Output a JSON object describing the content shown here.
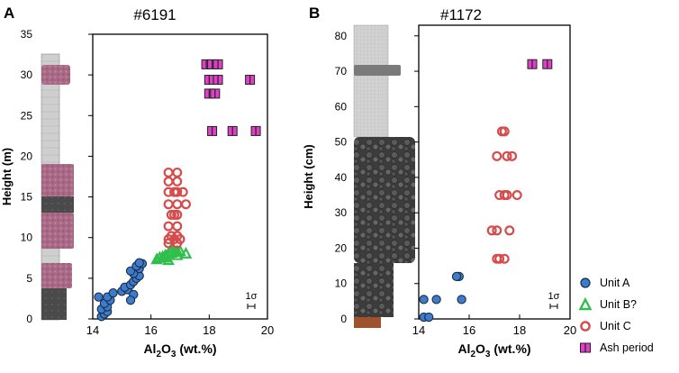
{
  "colors": {
    "unit_a": "#3d7cc9",
    "unit_b": "#2fbf4a",
    "unit_c": "#d64b4b",
    "ash": "#e040c8"
  },
  "legend": {
    "unit_a": "Unit A",
    "unit_b": "Unit B?",
    "unit_c": "Unit C",
    "ash": "Ash period"
  },
  "chart_data": [
    {
      "type": "scatter",
      "panel_label": "A",
      "title": "#6191",
      "xlabel_main": "Al",
      "xlabel_sub": "2",
      "xlabel_main2": "O",
      "xlabel_sub2": "3",
      "xlabel_tail": " (wt.%)",
      "ylabel": "Height (m)",
      "xlim": [
        14,
        20
      ],
      "ylim": [
        0,
        35
      ],
      "xticks": [
        "14",
        "16",
        "18",
        "20"
      ],
      "yticks": [
        "0",
        "5",
        "10",
        "15",
        "20",
        "25",
        "30",
        "35"
      ],
      "error_label": "1σ",
      "series": [
        {
          "name": "Unit A",
          "marker": "circle",
          "x": [
            14.3,
            14.4,
            14.5,
            14.3,
            14.5,
            14.4,
            14.6,
            14.2,
            14.5,
            14.7,
            15.0,
            15.2,
            15.1,
            15.3,
            15.4,
            15.5,
            15.6,
            15.4,
            15.3,
            15.6,
            15.5,
            15.7,
            15.6,
            15.4,
            15.3
          ],
          "y": [
            0.3,
            0.6,
            0.9,
            1.2,
            1.5,
            1.9,
            2.3,
            2.7,
            2.7,
            3.2,
            3.4,
            3.6,
            3.9,
            4.2,
            4.6,
            5.0,
            5.3,
            5.6,
            5.9,
            6.2,
            6.5,
            6.8,
            6.9,
            3.0,
            2.3
          ]
        },
        {
          "name": "Unit B?",
          "marker": "triangle",
          "x": [
            16.2,
            16.3,
            16.4,
            16.5,
            16.6,
            16.7,
            16.8,
            16.9,
            17.0,
            17.2,
            16.5,
            16.7,
            16.9,
            16.6
          ],
          "y": [
            7.3,
            7.5,
            7.6,
            7.8,
            8.0,
            8.1,
            8.2,
            8.3,
            8.3,
            8.0,
            7.5,
            8.6,
            7.8,
            7.2
          ]
        },
        {
          "name": "Unit C",
          "marker": "ring",
          "x": [
            16.6,
            16.9,
            16.8,
            17.0,
            16.7,
            16.9,
            16.6,
            16.9,
            16.7,
            16.9,
            16.6,
            16.9,
            16.6,
            16.8,
            17.1,
            16.6,
            16.9,
            16.6,
            16.9,
            16.8,
            17.2,
            16.6,
            16.9
          ],
          "y": [
            9.3,
            9.3,
            9.8,
            9.8,
            10.2,
            10.2,
            11.4,
            11.4,
            12.8,
            12.8,
            14.1,
            14.1,
            15.6,
            15.6,
            15.6,
            16.9,
            16.9,
            18.0,
            18.0,
            12.8,
            14.1,
            9.8,
            15.6
          ]
        },
        {
          "name": "Ash period",
          "marker": "square",
          "x": [
            17.9,
            18.1,
            18.3,
            18.0,
            18.3,
            18.0,
            18.2,
            19.4,
            18.1,
            18.8,
            19.6
          ],
          "y": [
            31.3,
            31.3,
            31.3,
            29.4,
            29.4,
            27.7,
            27.7,
            29.4,
            23.1,
            23.1,
            23.1
          ]
        }
      ]
    },
    {
      "type": "scatter",
      "panel_label": "B",
      "title": "#1172",
      "xlabel_main": "Al",
      "xlabel_sub": "2",
      "xlabel_main2": "O",
      "xlabel_sub2": "3",
      "xlabel_tail": " (wt.%)",
      "ylabel": "Height (cm)",
      "xlim": [
        14,
        20
      ],
      "ylim": [
        0,
        83
      ],
      "xticks": [
        "14",
        "16",
        "18",
        "20"
      ],
      "yticks": [
        "0",
        "10",
        "20",
        "30",
        "40",
        "50",
        "60",
        "70",
        "80"
      ],
      "error_label": "1σ",
      "series": [
        {
          "name": "Unit A",
          "marker": "circle",
          "x": [
            14.2,
            14.4,
            14.2,
            14.7,
            15.6,
            15.5,
            15.7
          ],
          "y": [
            0.5,
            0.5,
            5.5,
            5.5,
            12.0,
            12.0,
            5.5
          ]
        },
        {
          "name": "Unit C",
          "marker": "ring",
          "x": [
            17.3,
            17.4,
            17.1,
            17.5,
            17.4,
            17.9,
            17.5,
            17.7,
            17.2,
            17.4,
            16.9,
            17.1,
            17.6,
            17.2,
            17.1
          ],
          "y": [
            53,
            53,
            46,
            46,
            35,
            35,
            35,
            46,
            35,
            17,
            25,
            25,
            25,
            17,
            17
          ]
        },
        {
          "name": "Ash period",
          "marker": "square",
          "x": [
            18.5,
            19.1
          ],
          "y": [
            72,
            72
          ]
        }
      ]
    }
  ]
}
